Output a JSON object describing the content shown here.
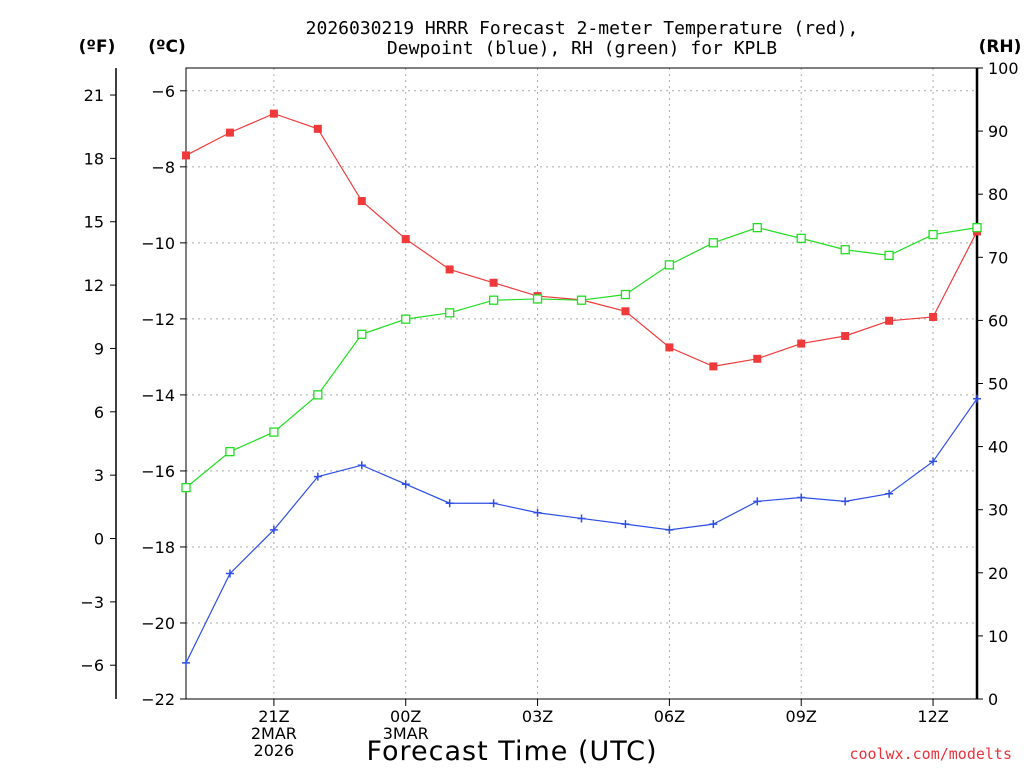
{
  "chart_data": {
    "type": "line",
    "title": [
      "2026030219 HRRR Forecast 2-meter Temperature (red),",
      "Dewpoint (blue), RH (green) for KPLB"
    ],
    "xlabel": "Forecast Time (UTC)",
    "credit": "coolwx.com/modelts",
    "units": {
      "fahrenheit": "(ºF)",
      "celsius": "(ºC)",
      "rh": "(RH)"
    },
    "x": [
      19,
      20,
      21,
      22,
      23,
      24,
      25,
      26,
      27,
      28,
      29,
      30,
      31,
      32,
      33,
      34,
      35,
      36,
      37
    ],
    "xlim": [
      19,
      37
    ],
    "x_ticks": [
      {
        "x": 21,
        "lines": [
          "21Z",
          "2MAR",
          "2026"
        ]
      },
      {
        "x": 24,
        "lines": [
          "00Z",
          "3MAR"
        ]
      },
      {
        "x": 27,
        "lines": [
          "03Z"
        ]
      },
      {
        "x": 30,
        "lines": [
          "06Z"
        ]
      },
      {
        "x": 33,
        "lines": [
          "09Z"
        ]
      },
      {
        "x": 36,
        "lines": [
          "12Z"
        ]
      }
    ],
    "celsius_axis": {
      "range": [
        -22,
        -5.4
      ],
      "ticks": [
        -22,
        -20,
        -18,
        -16,
        -14,
        -12,
        -10,
        -8,
        -6
      ]
    },
    "fahrenheit_axis": {
      "range": [
        -7.6,
        22.28
      ],
      "ticks": [
        -6,
        -3,
        0,
        3,
        6,
        9,
        12,
        15,
        18,
        21
      ]
    },
    "rh_axis": {
      "range": [
        0,
        100
      ],
      "ticks": [
        0,
        10,
        20,
        30,
        40,
        50,
        60,
        70,
        80,
        90,
        100
      ]
    },
    "series": [
      {
        "name": "2-meter Temperature",
        "axis": "celsius",
        "color": "#ee3a3a",
        "marker": "filled-square",
        "values": [
          -7.7,
          -7.1,
          -6.6,
          -7.0,
          -8.9,
          -9.9,
          -10.7,
          -11.05,
          -11.4,
          -11.5,
          -11.8,
          -12.75,
          -13.25,
          -13.05,
          -12.65,
          -12.45,
          -12.05,
          -11.95,
          -9.7
        ]
      },
      {
        "name": "Dewpoint",
        "axis": "celsius",
        "color": "#2e4ee6",
        "marker": "plus",
        "values": [
          -21.05,
          -18.7,
          -17.55,
          -16.15,
          -15.85,
          -16.35,
          -16.85,
          -16.85,
          -17.1,
          -17.25,
          -17.4,
          -17.55,
          -17.4,
          -16.8,
          -16.7,
          -16.8,
          -16.6,
          -15.75,
          -14.1
        ]
      },
      {
        "name": "RH",
        "axis": "rh",
        "color": "#22dd22",
        "marker": "open-square",
        "values": [
          33.5,
          39.2,
          42.3,
          48.2,
          57.8,
          60.2,
          61.2,
          63.2,
          63.4,
          63.2,
          64.1,
          68.8,
          72.3,
          74.7,
          73.0,
          71.2,
          70.3,
          73.6,
          74.7
        ]
      }
    ]
  }
}
